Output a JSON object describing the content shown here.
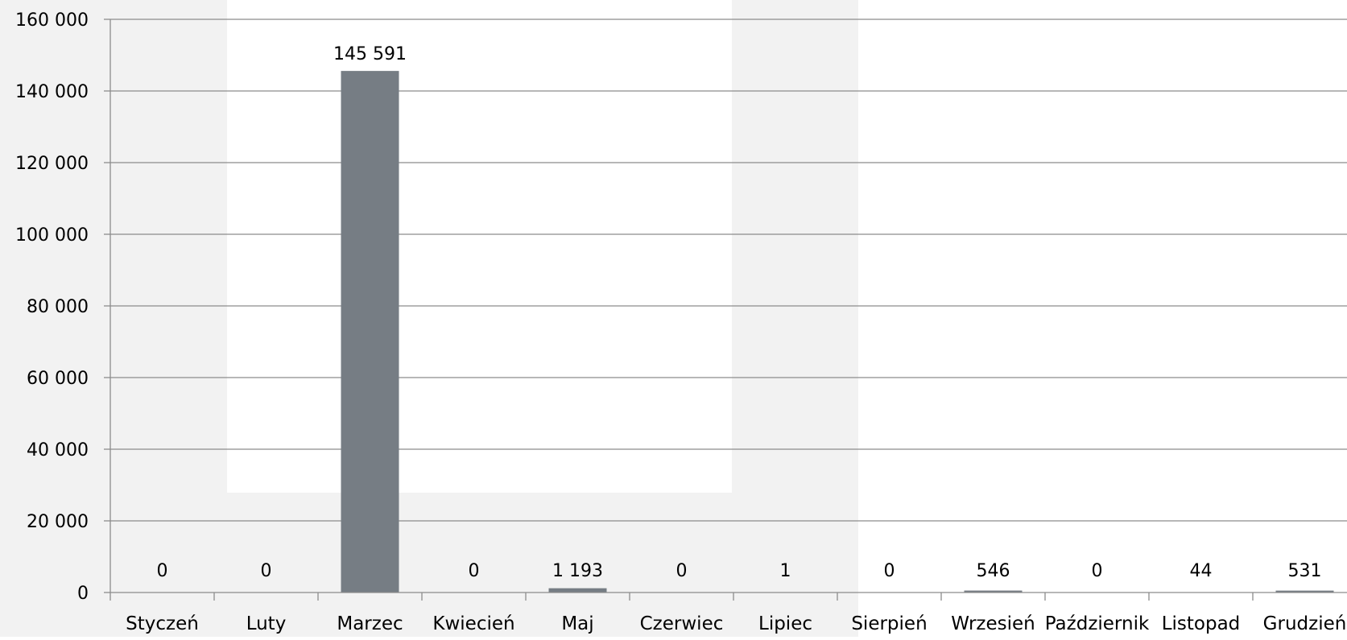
{
  "chart_data": {
    "type": "bar",
    "categories": [
      "Styczeń",
      "Luty",
      "Marzec",
      "Kwiecień",
      "Maj",
      "Czerwiec",
      "Lipiec",
      "Sierpień",
      "Wrzesień",
      "Październik",
      "Listopad",
      "Grudzień"
    ],
    "values": [
      0,
      0,
      145591,
      0,
      1193,
      0,
      1,
      0,
      546,
      0,
      44,
      531
    ],
    "data_labels": [
      "0",
      "0",
      "145 591",
      "0",
      "1 193",
      "0",
      "1",
      "0",
      "546",
      "0",
      "44",
      "531"
    ],
    "title": "",
    "xlabel": "",
    "ylabel": "",
    "ylim": [
      0,
      160000
    ],
    "yticks": [
      0,
      20000,
      40000,
      60000,
      80000,
      100000,
      120000,
      140000,
      160000
    ],
    "ytick_labels": [
      "0",
      "20 000",
      "40 000",
      "60 000",
      "80 000",
      "100 000",
      "120 000",
      "140 000",
      "160 000"
    ],
    "grid": true,
    "legend": "none",
    "colors": {
      "bar": "#767d84",
      "gridline": "#8c8c8c",
      "axis": "#8c8c8c",
      "background_shade": "#f2f2f2",
      "text": "#000000"
    }
  }
}
